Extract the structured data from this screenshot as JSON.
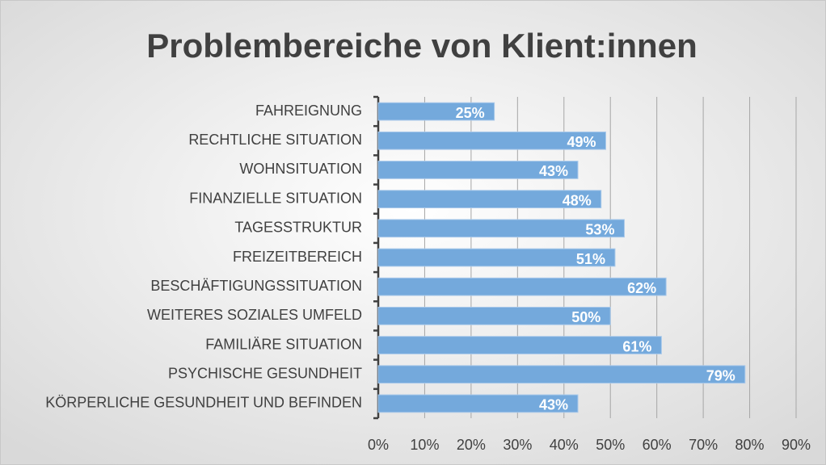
{
  "chart_data": {
    "type": "hbar",
    "title": "Problembereiche von Klient:innen",
    "categories": [
      "FAHREIGNUNG",
      "RECHTLICHE SITUATION",
      "WOHNSITUATION",
      "FINANZIELLE SITUATION",
      "TAGESSTRUKTUR",
      "FREIZEITBEREICH",
      "BESCHÄFTIGUNGSSITUATION",
      "WEITERES SOZIALES UMFELD",
      "FAMILIÄRE SITUATION",
      "PSYCHISCHE GESUNDHEIT",
      "KÖRPERLICHE GESUNDHEIT UND BEFINDEN"
    ],
    "values": [
      25,
      49,
      43,
      48,
      53,
      51,
      62,
      50,
      61,
      79,
      43
    ],
    "value_labels": [
      "25%",
      "49%",
      "43%",
      "48%",
      "53%",
      "51%",
      "62%",
      "50%",
      "61%",
      "79%",
      "43%"
    ],
    "color": "#74a9dc",
    "xlim": [
      0,
      90
    ],
    "xticks": [
      {
        "value": 0,
        "label": "0%"
      },
      {
        "value": 10,
        "label": "10%"
      },
      {
        "value": 20,
        "label": "20%"
      },
      {
        "value": 30,
        "label": "30%"
      },
      {
        "value": 40,
        "label": "40%"
      },
      {
        "value": 50,
        "label": "50%"
      },
      {
        "value": 60,
        "label": "60%"
      },
      {
        "value": 70,
        "label": "70%"
      },
      {
        "value": 80,
        "label": "80%"
      },
      {
        "value": 90,
        "label": "90%"
      }
    ],
    "grid": true
  }
}
